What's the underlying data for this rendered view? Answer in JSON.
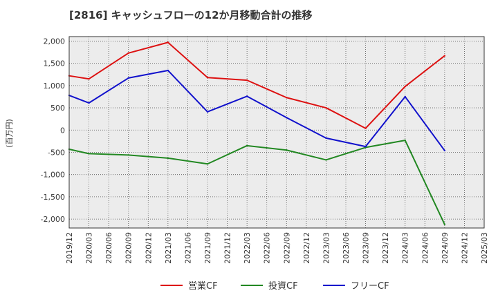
{
  "chart_data": {
    "type": "line",
    "title": "[2816]  キャッシュフローの12か月移動合計の推移",
    "ylabel": "(百万円)",
    "xlabel": "",
    "ylim": [
      -2200,
      2100
    ],
    "yticks": [
      2000,
      1500,
      1000,
      500,
      0,
      -500,
      -1000,
      -1500,
      -2000
    ],
    "ytick_labels": [
      "2,000",
      "1,500",
      "1,000",
      "500",
      "0",
      "-500",
      "-1,000",
      "-1,500",
      "-2,000"
    ],
    "categories": [
      "2019/12",
      "2020/03",
      "2020/06",
      "2020/09",
      "2020/12",
      "2021/03",
      "2021/06",
      "2021/09",
      "2021/12",
      "2022/03",
      "2022/06",
      "2022/09",
      "2022/12",
      "2023/03",
      "2023/06",
      "2023/09",
      "2023/12",
      "2024/03",
      "2024/06",
      "2024/09",
      "2024/12",
      "2025/03"
    ],
    "grid": true,
    "legend_position": "bottom",
    "series": [
      {
        "name": "営業CF",
        "color": "#dd1111",
        "values": [
          1220,
          1150,
          null,
          1730,
          null,
          1970,
          null,
          1180,
          null,
          1120,
          null,
          730,
          null,
          500,
          null,
          40,
          null,
          980,
          null,
          1670,
          null,
          null
        ]
      },
      {
        "name": "投資CF",
        "color": "#228822",
        "values": [
          -430,
          -530,
          null,
          -560,
          null,
          -630,
          null,
          -760,
          null,
          -350,
          null,
          -450,
          null,
          -670,
          null,
          -390,
          null,
          -230,
          null,
          -2120,
          null,
          null
        ]
      },
      {
        "name": "フリーCF",
        "color": "#1111cc",
        "values": [
          780,
          610,
          null,
          1170,
          null,
          1340,
          null,
          410,
          null,
          760,
          null,
          280,
          null,
          -180,
          null,
          -370,
          null,
          750,
          null,
          -460,
          null,
          null
        ]
      }
    ]
  }
}
